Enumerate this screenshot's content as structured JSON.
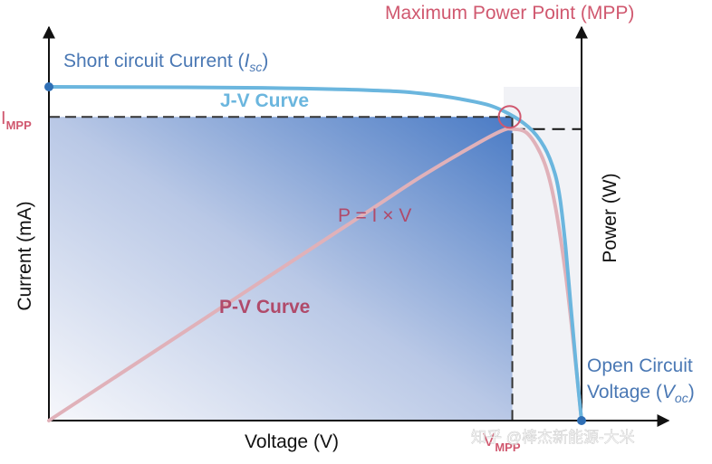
{
  "chart_data": {
    "type": "line",
    "title": "",
    "xlabel": "Voltage (V)",
    "ylabel_left": "Current  (mA)",
    "ylabel_right": "Power (W)",
    "xlim": [
      0,
      1
    ],
    "ylim": [
      0,
      1
    ],
    "grid": false,
    "series": [
      {
        "name": "J-V Curve",
        "x": [
          0,
          0.2,
          0.4,
          0.6,
          0.7,
          0.8,
          0.85,
          0.9,
          0.93,
          0.95,
          0.96,
          0.97,
          0.98,
          0.99,
          1.0
        ],
        "y": [
          1.0,
          0.999,
          0.997,
          0.99,
          0.98,
          0.955,
          0.93,
          0.88,
          0.82,
          0.74,
          0.66,
          0.52,
          0.34,
          0.16,
          0.0
        ]
      },
      {
        "name": "P-V Curve",
        "x": [
          0,
          0.2,
          0.4,
          0.6,
          0.7,
          0.8,
          0.85,
          0.87,
          0.9,
          0.93,
          0.95,
          0.97,
          0.99,
          1.0
        ],
        "y": [
          0.0,
          0.2,
          0.4,
          0.6,
          0.7,
          0.79,
          0.83,
          0.835,
          0.82,
          0.74,
          0.62,
          0.42,
          0.15,
          0.0
        ]
      }
    ],
    "annotations": {
      "isc_prefix": "Short circuit Current (",
      "isc_var": "I",
      "isc_sub": "sc",
      "isc_suffix": ")",
      "jv_label": "J-V Curve",
      "pv_label": "P-V Curve",
      "formula": "P = I × V",
      "mpp_title": "Maximum Power Point (MPP)",
      "impp_main": "I",
      "impp_sub": "MPP",
      "vmpp_main": "V",
      "vmpp_sub": "MPP",
      "voc_line1": "Open Circuit",
      "voc_prefix": "Voltage (",
      "voc_var": "V",
      "voc_sub": "oc",
      "voc_suffix": ")",
      "watermark": "知乎 @棒杰新能源-大米"
    },
    "colors": {
      "jv": "#6bb6de",
      "pv": "#e0b1b9",
      "mpp_text": "#d0586f",
      "label_blue": "#4a78b4",
      "jv_label": "#6bb6de",
      "pv_label": "#b04a6a",
      "fill_dark": "#4a7bc5",
      "fill_light": "#f1f2f8"
    }
  }
}
